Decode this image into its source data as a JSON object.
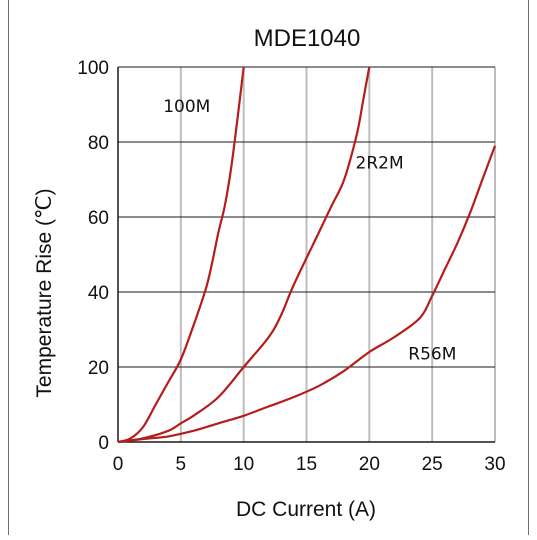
{
  "chart_data": {
    "type": "line",
    "title": "MDE1040",
    "xlabel": "DC Current (A)",
    "ylabel": "Temperature Rise (℃)",
    "xlim": [
      0,
      30
    ],
    "ylim": [
      0,
      100
    ],
    "xticks": [
      0,
      5,
      10,
      15,
      20,
      25,
      30
    ],
    "yticks": [
      0,
      20,
      40,
      60,
      80,
      100
    ],
    "grid": true,
    "line_color": "#b71c1c",
    "series": [
      {
        "name": "100M",
        "x": [
          0,
          1,
          2,
          3,
          4,
          5,
          6,
          7,
          7.5,
          8,
          8.5,
          9,
          9.5,
          10
        ],
        "y": [
          0,
          1,
          4,
          10,
          16,
          22,
          31,
          41,
          48,
          56,
          63,
          73,
          86,
          100
        ]
      },
      {
        "name": "2R2M",
        "x": [
          0,
          2,
          4,
          5,
          6,
          8,
          10,
          12,
          13,
          14,
          16,
          17,
          18,
          19,
          19.5,
          20
        ],
        "y": [
          0,
          1,
          3,
          5,
          7,
          12,
          20,
          28,
          34,
          42,
          56,
          63,
          70,
          82,
          91,
          100
        ]
      },
      {
        "name": "R56M",
        "x": [
          0,
          2,
          4,
          6,
          8,
          10,
          12,
          14,
          16,
          18,
          20,
          22,
          24,
          25,
          26,
          27,
          28,
          29,
          30
        ],
        "y": [
          0,
          0.8,
          1.5,
          3,
          5,
          7,
          9.5,
          12,
          15,
          19,
          24,
          28,
          33,
          39,
          46,
          53,
          61,
          70,
          79
        ]
      }
    ]
  }
}
